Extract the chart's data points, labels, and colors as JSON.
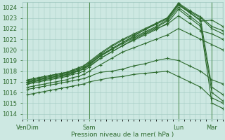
{
  "title": "Pression niveau de la mer( hPa )",
  "ylabel_ticks": [
    1014,
    1015,
    1016,
    1017,
    1018,
    1019,
    1020,
    1021,
    1022,
    1023,
    1024
  ],
  "ylim": [
    1013.5,
    1024.5
  ],
  "xlim": [
    0,
    108
  ],
  "xtick_positions": [
    3,
    36,
    84,
    102
  ],
  "xtick_labels": [
    "VenDim",
    "Sam",
    "Lun",
    "Mar"
  ],
  "bg_color": "#cde8e2",
  "grid_color": "#a0c8c0",
  "line_color": "#2d6a2d",
  "marker": "+",
  "markersize": 3,
  "linewidth": 0.8,
  "vline_positions": [
    3,
    36,
    84,
    102
  ],
  "vline_color": "#4a8a4a",
  "series": [
    {
      "x": [
        3,
        6,
        9,
        12,
        15,
        18,
        21,
        24,
        27,
        30,
        33,
        36,
        42,
        48,
        54,
        60,
        66,
        72,
        78,
        84,
        90,
        96,
        102,
        108
      ],
      "y": [
        1016.8,
        1017.0,
        1017.1,
        1017.2,
        1017.3,
        1017.4,
        1017.5,
        1017.6,
        1017.8,
        1018.0,
        1018.2,
        1018.5,
        1019.2,
        1019.8,
        1020.4,
        1020.9,
        1021.4,
        1021.9,
        1022.5,
        1023.8,
        1023.0,
        1022.2,
        1015.0,
        1014.5
      ]
    },
    {
      "x": [
        3,
        6,
        9,
        12,
        15,
        18,
        21,
        24,
        27,
        30,
        33,
        36,
        42,
        48,
        54,
        60,
        66,
        72,
        78,
        84,
        90,
        96,
        102,
        108
      ],
      "y": [
        1016.9,
        1017.1,
        1017.2,
        1017.3,
        1017.4,
        1017.5,
        1017.6,
        1017.7,
        1017.9,
        1018.1,
        1018.3,
        1018.6,
        1019.4,
        1020.0,
        1020.6,
        1021.1,
        1021.6,
        1022.1,
        1022.7,
        1024.0,
        1023.2,
        1022.4,
        1016.0,
        1015.2
      ]
    },
    {
      "x": [
        3,
        6,
        9,
        12,
        15,
        18,
        21,
        24,
        27,
        30,
        33,
        36,
        42,
        48,
        54,
        60,
        66,
        72,
        78,
        84,
        90,
        96,
        102,
        108
      ],
      "y": [
        1017.0,
        1017.2,
        1017.3,
        1017.4,
        1017.5,
        1017.6,
        1017.7,
        1017.8,
        1018.0,
        1018.2,
        1018.4,
        1018.7,
        1019.5,
        1020.1,
        1020.7,
        1021.2,
        1021.7,
        1022.2,
        1022.8,
        1024.2,
        1023.5,
        1022.8,
        1016.5,
        1015.8
      ]
    },
    {
      "x": [
        3,
        6,
        9,
        12,
        15,
        18,
        21,
        24,
        27,
        30,
        33,
        36,
        42,
        48,
        54,
        60,
        66,
        72,
        78,
        84,
        90,
        96,
        102,
        108
      ],
      "y": [
        1017.1,
        1017.3,
        1017.4,
        1017.5,
        1017.6,
        1017.7,
        1017.8,
        1017.9,
        1018.1,
        1018.3,
        1018.5,
        1018.8,
        1019.6,
        1020.3,
        1020.9,
        1021.4,
        1021.9,
        1022.4,
        1022.9,
        1024.3,
        1023.6,
        1023.0,
        1022.0,
        1021.5
      ]
    },
    {
      "x": [
        3,
        6,
        9,
        12,
        15,
        18,
        21,
        24,
        27,
        30,
        33,
        36,
        42,
        48,
        54,
        60,
        66,
        72,
        78,
        84,
        90,
        96,
        102,
        108
      ],
      "y": [
        1017.2,
        1017.3,
        1017.4,
        1017.5,
        1017.6,
        1017.7,
        1017.8,
        1017.9,
        1018.1,
        1018.3,
        1018.5,
        1018.9,
        1019.7,
        1020.4,
        1021.0,
        1021.5,
        1022.0,
        1022.5,
        1023.0,
        1024.4,
        1023.7,
        1023.1,
        1022.2,
        1021.8
      ]
    },
    {
      "x": [
        3,
        6,
        9,
        12,
        15,
        18,
        21,
        24,
        27,
        30,
        33,
        36,
        42,
        48,
        54,
        60,
        66,
        72,
        78,
        84,
        90,
        96,
        102,
        108
      ],
      "y": [
        1017.0,
        1017.1,
        1017.2,
        1017.3,
        1017.4,
        1017.5,
        1017.6,
        1017.7,
        1017.9,
        1018.0,
        1018.2,
        1018.6,
        1019.4,
        1020.1,
        1020.7,
        1021.3,
        1021.9,
        1022.5,
        1023.0,
        1024.3,
        1023.5,
        1022.7,
        1022.8,
        1022.2
      ]
    },
    {
      "x": [
        3,
        6,
        9,
        12,
        15,
        18,
        21,
        24,
        27,
        30,
        33,
        36,
        42,
        48,
        54,
        60,
        66,
        72,
        78,
        84,
        90,
        96,
        102,
        108
      ],
      "y": [
        1016.8,
        1016.9,
        1017.0,
        1017.1,
        1017.2,
        1017.3,
        1017.4,
        1017.5,
        1017.7,
        1017.8,
        1018.0,
        1018.4,
        1019.2,
        1019.8,
        1020.4,
        1021.0,
        1021.5,
        1022.0,
        1022.4,
        1023.2,
        1022.5,
        1021.8,
        1021.5,
        1021.0
      ]
    },
    {
      "x": [
        3,
        6,
        9,
        12,
        15,
        18,
        21,
        24,
        27,
        30,
        33,
        36,
        42,
        48,
        54,
        60,
        66,
        72,
        78,
        84,
        90,
        96,
        102,
        108
      ],
      "y": [
        1016.5,
        1016.6,
        1016.7,
        1016.8,
        1016.9,
        1017.0,
        1017.1,
        1017.2,
        1017.4,
        1017.5,
        1017.7,
        1018.0,
        1018.6,
        1019.2,
        1019.8,
        1020.2,
        1020.6,
        1021.0,
        1021.4,
        1022.0,
        1021.5,
        1021.0,
        1020.5,
        1020.0
      ]
    },
    {
      "x": [
        3,
        6,
        9,
        12,
        15,
        18,
        21,
        24,
        27,
        30,
        33,
        36,
        42,
        48,
        54,
        60,
        66,
        72,
        78,
        84,
        90,
        96,
        102,
        108
      ],
      "y": [
        1016.3,
        1016.4,
        1016.5,
        1016.6,
        1016.7,
        1016.8,
        1016.9,
        1017.0,
        1017.1,
        1017.2,
        1017.3,
        1017.5,
        1017.9,
        1018.0,
        1018.2,
        1018.5,
        1018.7,
        1019.0,
        1019.2,
        1019.0,
        1018.5,
        1018.0,
        1017.2,
        1016.8
      ]
    },
    {
      "x": [
        3,
        6,
        9,
        12,
        15,
        18,
        21,
        24,
        27,
        30,
        33,
        36,
        42,
        48,
        54,
        60,
        66,
        72,
        78,
        84,
        90,
        96,
        102,
        108
      ],
      "y": [
        1015.8,
        1015.9,
        1016.0,
        1016.1,
        1016.2,
        1016.3,
        1016.4,
        1016.5,
        1016.6,
        1016.7,
        1016.8,
        1017.0,
        1017.2,
        1017.4,
        1017.5,
        1017.7,
        1017.8,
        1017.9,
        1018.0,
        1017.5,
        1017.0,
        1016.5,
        1015.5,
        1015.0
      ]
    }
  ]
}
